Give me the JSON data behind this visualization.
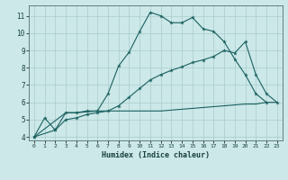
{
  "title": "",
  "xlabel": "Humidex (Indice chaleur)",
  "bg_color": "#cce8e8",
  "grid_color": "#aacccc",
  "line_color": "#1a6060",
  "xlim": [
    -0.5,
    23.5
  ],
  "ylim": [
    3.8,
    11.6
  ],
  "yticks": [
    4,
    5,
    6,
    7,
    8,
    9,
    10,
    11
  ],
  "xticks": [
    0,
    1,
    2,
    3,
    4,
    5,
    6,
    7,
    8,
    9,
    10,
    11,
    12,
    13,
    14,
    15,
    16,
    17,
    18,
    19,
    20,
    21,
    22,
    23
  ],
  "series1_x": [
    0,
    1,
    2,
    3,
    4,
    5,
    6,
    7,
    8,
    9,
    10,
    11,
    12,
    13,
    14,
    15,
    16,
    17,
    18,
    19,
    20,
    21,
    22
  ],
  "series1_y": [
    4.0,
    5.1,
    4.4,
    5.4,
    5.4,
    5.5,
    5.5,
    6.5,
    8.1,
    8.9,
    10.1,
    11.2,
    11.0,
    10.6,
    10.6,
    10.9,
    10.25,
    10.1,
    9.5,
    8.5,
    7.6,
    6.5,
    6.0
  ],
  "series2_x": [
    0,
    3,
    4,
    5,
    6,
    7,
    8,
    9,
    10,
    11,
    12,
    13,
    14,
    15,
    16,
    17,
    18,
    19,
    20,
    21,
    22,
    23
  ],
  "series2_y": [
    4.0,
    5.4,
    5.4,
    5.45,
    5.5,
    5.5,
    5.5,
    5.5,
    5.5,
    5.5,
    5.5,
    5.55,
    5.6,
    5.65,
    5.7,
    5.75,
    5.8,
    5.85,
    5.9,
    5.9,
    6.0,
    6.0
  ],
  "series3_x": [
    0,
    2,
    3,
    4,
    5,
    6,
    7,
    8,
    9,
    10,
    11,
    12,
    13,
    14,
    15,
    16,
    17,
    18,
    19,
    20,
    21,
    22,
    23
  ],
  "series3_y": [
    4.0,
    4.4,
    5.0,
    5.1,
    5.3,
    5.4,
    5.5,
    5.8,
    6.3,
    6.8,
    7.3,
    7.6,
    7.85,
    8.05,
    8.3,
    8.45,
    8.65,
    9.0,
    8.85,
    9.5,
    7.6,
    6.5,
    6.0
  ]
}
